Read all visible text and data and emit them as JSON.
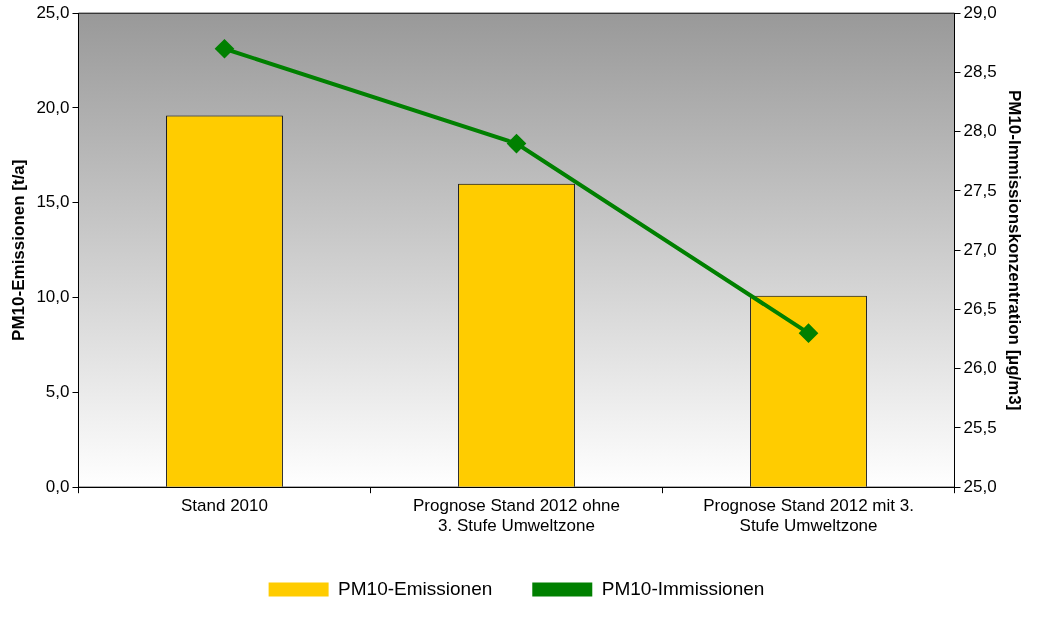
{
  "chart_data": {
    "type": "bar",
    "categories": [
      "Stand 2010",
      "Prognose Stand 2012 ohne 3. Stufe Umweltzone",
      "Prognose Stand 2012 mit 3. Stufe Umweltzone"
    ],
    "series": [
      {
        "name": "PM10-Emissionen",
        "color": "#ffcc00",
        "values": [
          19.6,
          16.0,
          10.1
        ]
      },
      {
        "name": "PM10-Immissionen",
        "type": "line",
        "axis": "y2",
        "color": "#008000",
        "values": [
          28.7,
          27.9,
          26.3
        ]
      }
    ],
    "ylabel": "PM10-Emissionen [t/a]",
    "y2label": "PM10-Immissionskonzentration [µg/m3]",
    "ylim": [
      0,
      25
    ],
    "yticks": [
      {
        "value": 0,
        "label": "0,0"
      },
      {
        "value": 5,
        "label": "5,0"
      },
      {
        "value": 10,
        "label": "10,0"
      },
      {
        "value": 15,
        "label": "15,0"
      },
      {
        "value": 20,
        "label": "20,0"
      },
      {
        "value": 25,
        "label": "25,0"
      }
    ],
    "y2lim": [
      25,
      29
    ],
    "y2ticks": [
      {
        "value": 25,
        "label": "25,0"
      },
      {
        "value": 25.5,
        "label": "25,5"
      },
      {
        "value": 26,
        "label": "26,0"
      },
      {
        "value": 26.5,
        "label": "26,5"
      },
      {
        "value": 27,
        "label": "27,0"
      },
      {
        "value": 27.5,
        "label": "27,5"
      },
      {
        "value": 28,
        "label": "28,0"
      },
      {
        "value": 28.5,
        "label": "28,5"
      },
      {
        "value": 29,
        "label": "29,0"
      }
    ],
    "grid": false,
    "legend": "bottom",
    "marker": "diamond",
    "line_style": "solid"
  }
}
